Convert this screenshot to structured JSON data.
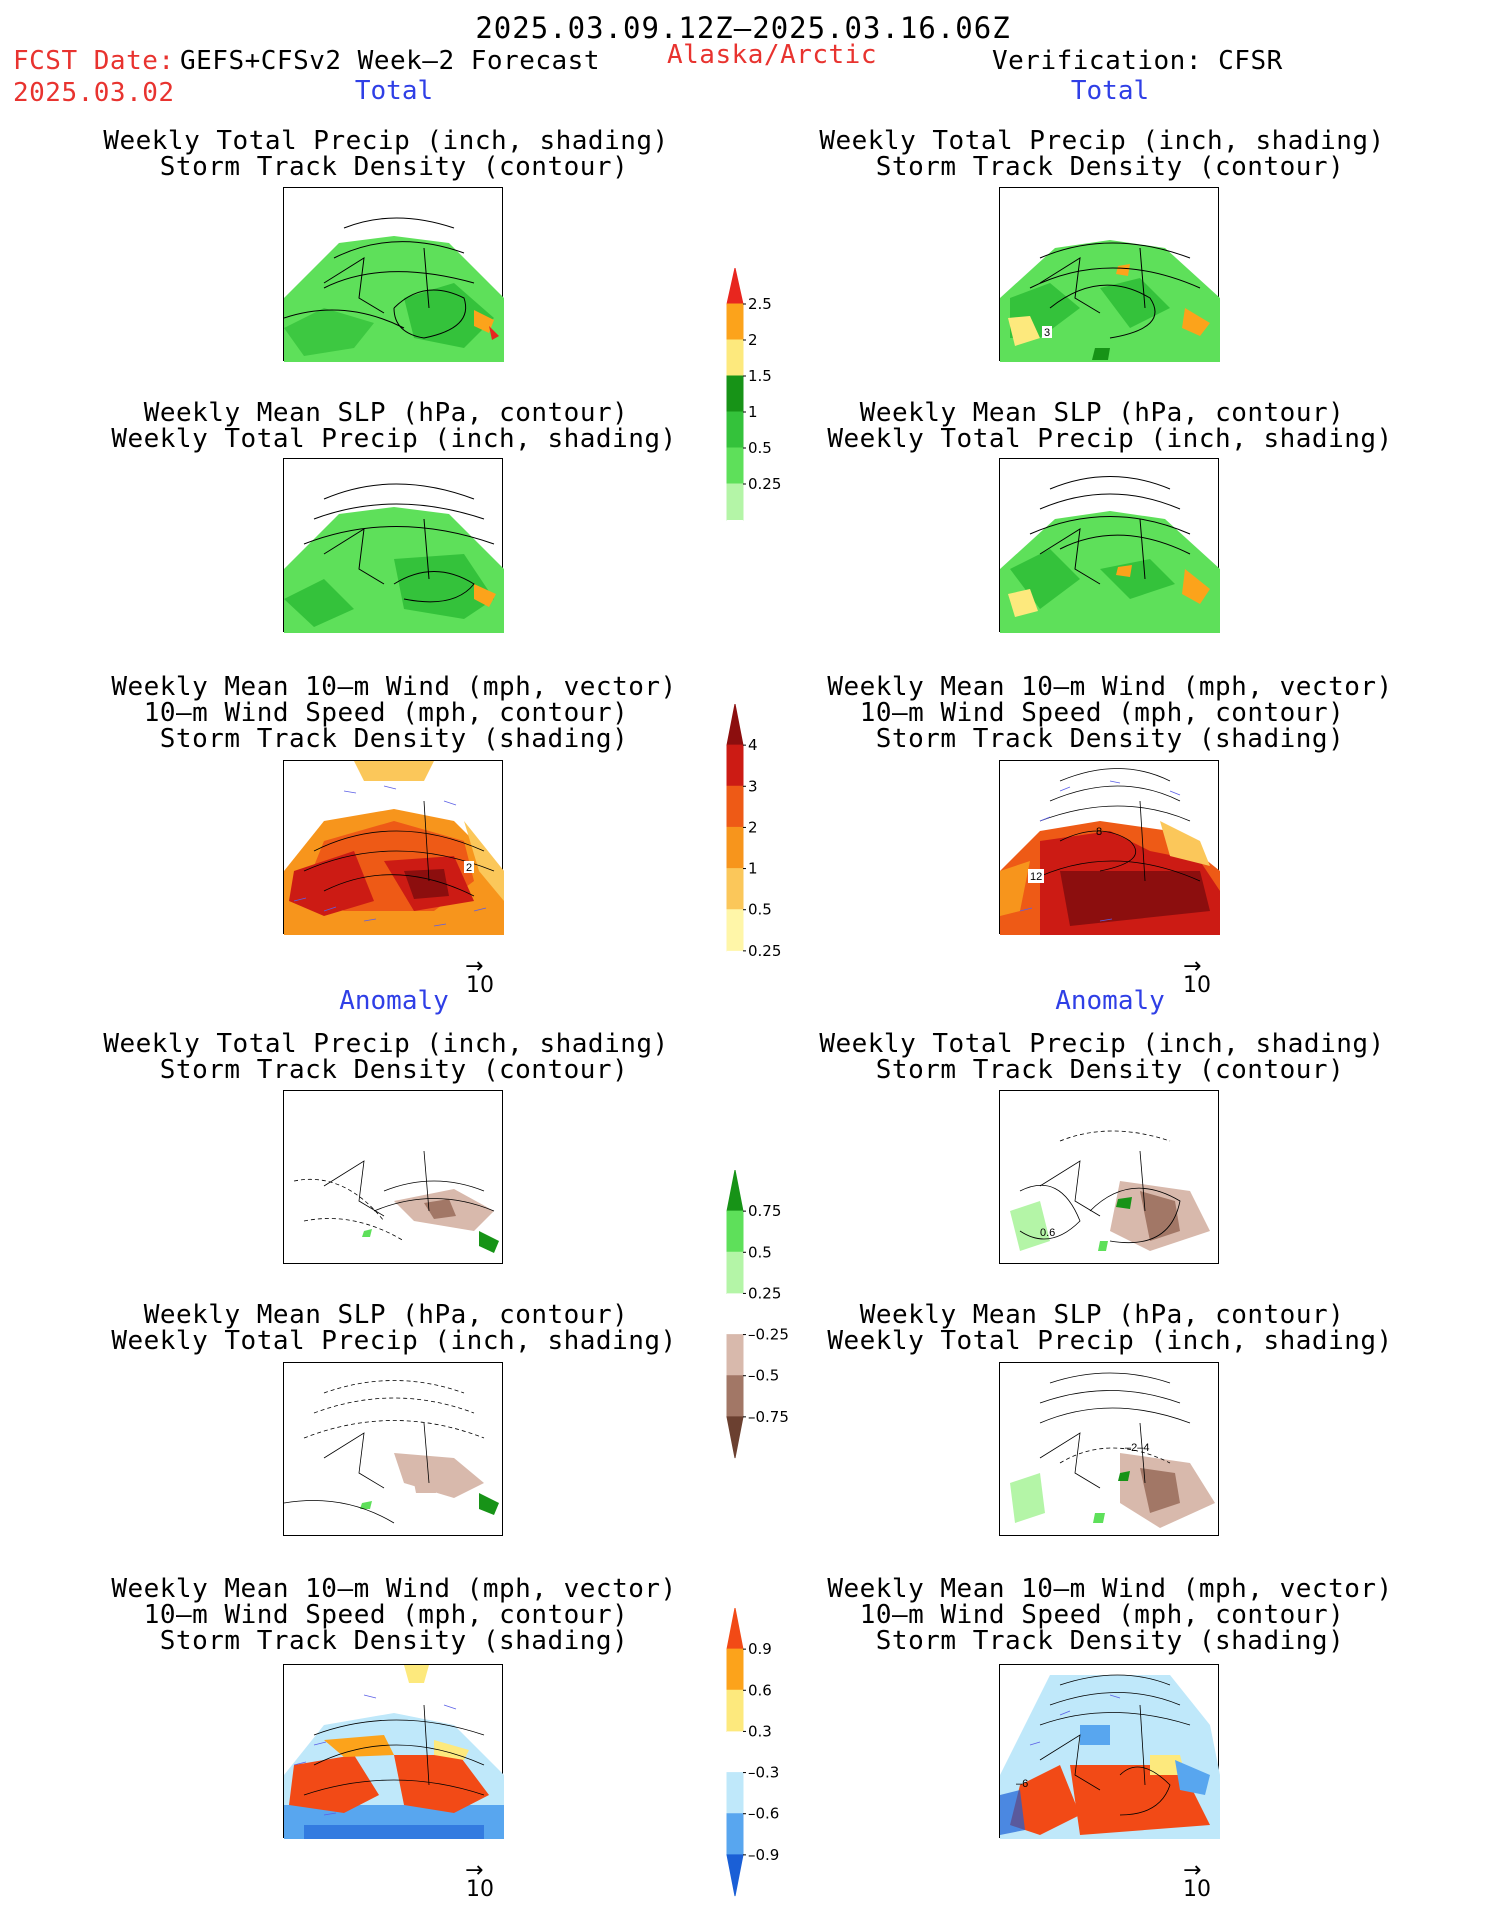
{
  "header": {
    "period": "2025.03.09.12Z–2025.03.16.06Z",
    "fcst_date_label": "FCST Date:",
    "fcst_model": "GEFS+CFSv2 Week–2 Forecast",
    "fcst_date": "2025.03.02",
    "region": "Alaska/Arctic",
    "verification": "Verification: CFSR"
  },
  "sections": {
    "left_total": "Total",
    "right_total": "Total",
    "left_anomaly": "Anomaly",
    "right_anomaly": "Anomaly"
  },
  "panel_titles": {
    "precip_storm": [
      "Weekly Total Precip (inch, shading)",
      "Storm Track Density (contour)"
    ],
    "slp_precip": [
      "Weekly Mean SLP (hPa, contour)",
      "Weekly Total Precip (inch, shading)"
    ],
    "wind_storm": [
      "Weekly Mean 10–m Wind (mph, vector)",
      "10–m Wind Speed (mph, contour)",
      "Storm Track Density (shading)"
    ]
  },
  "contour_labels": {
    "total_precip_fcst_storm": "",
    "total_precip_obs_storm": "3",
    "total_wind_fcst": "2",
    "total_wind_obs_a": "12",
    "total_wind_obs_b": "8",
    "anom_precip_obs": "0.6",
    "anom_slp_obs": "–2–4",
    "anom_wind_obs": "–6"
  },
  "vector_reference": {
    "value": "10"
  },
  "chart_data": [
    {
      "type": "heatmap",
      "name": "colorbar_total_precip",
      "title": "",
      "levels": [
        "0.25",
        "0.5",
        "1",
        "1.5",
        "2",
        "2.5"
      ],
      "colors": [
        "#ffffff",
        "#b4f5a7",
        "#5ee05a",
        "#34c23b",
        "#179317",
        "#fde97d",
        "#fca31b",
        "#e8261f"
      ]
    },
    {
      "type": "heatmap",
      "name": "colorbar_total_storm",
      "title": "",
      "levels": [
        "0.25",
        "0.5",
        "1",
        "2",
        "3",
        "4"
      ],
      "colors": [
        "#ffffff",
        "#fff6a8",
        "#fbc75a",
        "#f7951c",
        "#ee5a16",
        "#cc1b14",
        "#8c0e0e"
      ]
    },
    {
      "type": "heatmap",
      "name": "colorbar_anom_precip",
      "title": "",
      "levels": [
        "-0.75",
        "-0.5",
        "-0.25",
        "0.25",
        "0.5",
        "0.75"
      ],
      "colors": [
        "#6b4030",
        "#a27766",
        "#d8b9ac",
        "#ffffff",
        "#b4f5a7",
        "#5ee05a",
        "#179317"
      ]
    },
    {
      "type": "heatmap",
      "name": "colorbar_anom_storm",
      "title": "",
      "levels": [
        "-0.9",
        "-0.6",
        "-0.3",
        "0.3",
        "0.6",
        "0.9"
      ],
      "colors": [
        "#1a5fd6",
        "#58a6ef",
        "#bfe8fa",
        "#ffffff",
        "#fde97d",
        "#fca31b",
        "#f24a16"
      ]
    }
  ]
}
